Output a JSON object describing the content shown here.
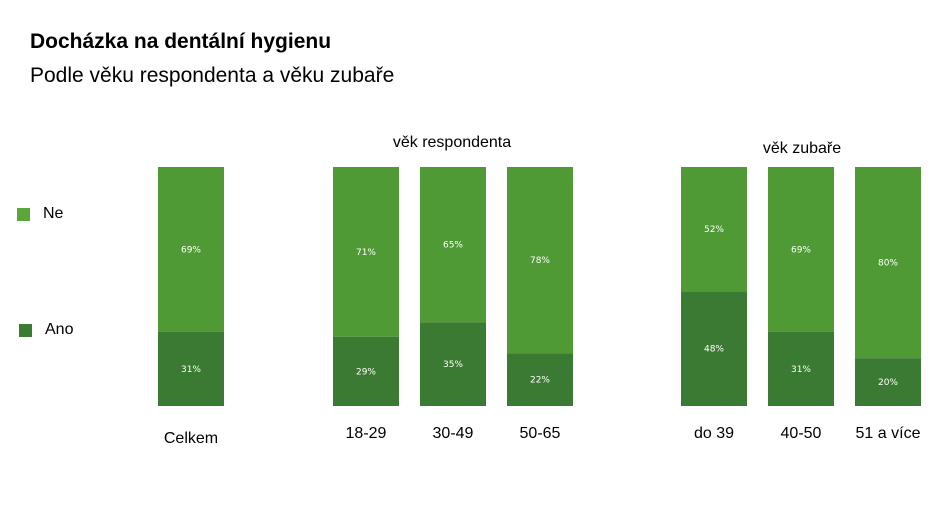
{
  "chart_data": {
    "type": "bar",
    "stacked": true,
    "title": "Docházka na dentální hygienu",
    "subtitle": "Podle věku respondenta a věku zubaře",
    "groups": [
      "věk respondenta",
      "věk zubaře"
    ],
    "categories": [
      "Celkem",
      "18-29",
      "30-49",
      "50-65",
      "do 39",
      "40-50",
      "51 a více"
    ],
    "category_group": [
      null,
      "věk respondenta",
      "věk respondenta",
      "věk respondenta",
      "věk zubaře",
      "věk zubaře",
      "věk zubaře"
    ],
    "series": [
      {
        "name": "Ano",
        "color": "#3b7a32",
        "values": [
          31,
          29,
          35,
          22,
          48,
          31,
          20
        ],
        "labels": [
          "31%",
          "29%",
          "35%",
          "22%",
          "48%",
          "31%",
          "20%"
        ]
      },
      {
        "name": "Ne",
        "color": "#4f9a35",
        "values": [
          69,
          71,
          65,
          78,
          52,
          69,
          80
        ],
        "labels": [
          "69%",
          "71%",
          "65%",
          "78%",
          "52%",
          "69%",
          "80%"
        ]
      }
    ],
    "ylim": [
      0,
      100
    ],
    "legend": {
      "position": "left",
      "items": [
        {
          "name": "Ne",
          "color": "#5aa63a"
        },
        {
          "name": "Ano",
          "color": "#3b7a32"
        }
      ]
    },
    "grid": false
  }
}
